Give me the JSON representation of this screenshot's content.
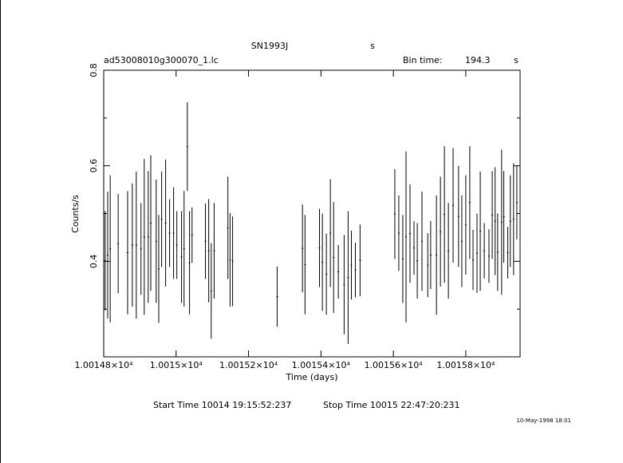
{
  "chart_data": {
    "type": "errorbar",
    "title": "SN1993J",
    "title_unit": "s",
    "file_label": "ad53008010g300070_1.lc",
    "bin_time_label": "Bin time:",
    "bin_time": 194.3,
    "bin_time_unit": "s",
    "xlabel": "Time (days)",
    "ylabel": "Counts/s",
    "start_time": "Start Time 10014 19:15:52:237",
    "stop_time": "Stop Time 10015 22:47:20:231",
    "timestamp": "10-May-1998 18:01",
    "color": "#000000",
    "xlim": [
      10014.8,
      10015.95
    ],
    "xticks": [
      {
        "value": 10014.8,
        "label": "1.00148×10⁴"
      },
      {
        "value": 10015.0,
        "label": "1.0015×10⁴"
      },
      {
        "value": 10015.2,
        "label": "1.00152×10⁴"
      },
      {
        "value": 10015.4,
        "label": "1.00154×10⁴"
      },
      {
        "value": 10015.6,
        "label": "1.00156×10⁴"
      },
      {
        "value": 10015.8,
        "label": "1.00158×10⁴"
      }
    ],
    "ylim": [
      0.2,
      0.8
    ],
    "yticks": [
      0.4,
      0.6,
      0.8
    ],
    "yminorticks": [
      0.3,
      0.5,
      0.7
    ],
    "x": [
      10014.804,
      10014.811,
      10014.818,
      10014.84,
      10014.866,
      10014.879,
      10014.89,
      10014.903,
      10014.912,
      10014.923,
      10014.93,
      10014.945,
      10014.952,
      10014.96,
      10014.971,
      10014.982,
      10014.993,
      10015.002,
      10015.015,
      10015.022,
      10015.031,
      10015.037,
      10015.044,
      10015.081,
      10015.09,
      10015.097,
      10015.105,
      10015.143,
      10015.149,
      10015.156,
      10015.279,
      10015.349,
      10015.356,
      10015.396,
      10015.404,
      10015.415,
      10015.426,
      10015.435,
      10015.448,
      10015.464,
      10015.475,
      10015.484,
      10015.495,
      10015.508,
      10015.604,
      10015.615,
      10015.626,
      10015.635,
      10015.646,
      10015.657,
      10015.666,
      10015.679,
      10015.695,
      10015.703,
      10015.719,
      10015.73,
      10015.741,
      10015.752,
      10015.765,
      10015.78,
      10015.789,
      10015.8,
      10015.811,
      10015.82,
      10015.831,
      10015.84,
      10015.851,
      10015.864,
      10015.873,
      10015.881,
      10015.888,
      10015.899,
      10015.905,
      10015.916,
      10015.923,
      10015.932,
      10015.941
    ],
    "values": [
      0.401,
      0.413,
      0.426,
      0.437,
      0.418,
      0.434,
      0.434,
      0.426,
      0.451,
      0.451,
      0.48,
      0.442,
      0.384,
      0.488,
      0.48,
      0.459,
      0.459,
      0.434,
      0.409,
      0.426,
      0.64,
      0.397,
      0.455,
      0.442,
      0.422,
      0.338,
      0.422,
      0.47,
      0.403,
      0.4,
      0.326,
      0.427,
      0.393,
      0.428,
      0.398,
      0.373,
      0.459,
      0.408,
      0.378,
      0.351,
      0.366,
      0.392,
      0.382,
      0.402,
      0.499,
      0.459,
      0.405,
      0.451,
      0.458,
      0.428,
      0.401,
      0.442,
      0.392,
      0.413,
      0.413,
      0.462,
      0.498,
      0.422,
      0.517,
      0.494,
      0.442,
      0.476,
      0.523,
      0.403,
      0.417,
      0.463,
      0.422,
      0.411,
      0.497,
      0.484,
      0.419,
      0.482,
      0.493,
      0.418,
      0.484,
      0.488,
      0.523
    ],
    "errors": [
      0.104,
      0.133,
      0.154,
      0.104,
      0.129,
      0.129,
      0.154,
      0.096,
      0.163,
      0.138,
      0.142,
      0.129,
      0.113,
      0.1,
      0.133,
      0.071,
      0.096,
      0.071,
      0.096,
      0.121,
      0.093,
      0.108,
      0.058,
      0.079,
      0.108,
      0.1,
      0.1,
      0.107,
      0.098,
      0.094,
      0.063,
      0.092,
      0.104,
      0.082,
      0.102,
      0.085,
      0.113,
      0.116,
      0.056,
      0.104,
      0.139,
      0.072,
      0.057,
      0.075,
      0.094,
      0.079,
      0.092,
      0.179,
      0.103,
      0.056,
      0.079,
      0.104,
      0.067,
      0.071,
      0.125,
      0.115,
      0.143,
      0.1,
      0.12,
      0.106,
      0.096,
      0.104,
      0.118,
      0.063,
      0.083,
      0.125,
      0.058,
      0.056,
      0.092,
      0.113,
      0.081,
      0.152,
      0.096,
      0.054,
      0.096,
      0.117,
      0.077
    ]
  }
}
